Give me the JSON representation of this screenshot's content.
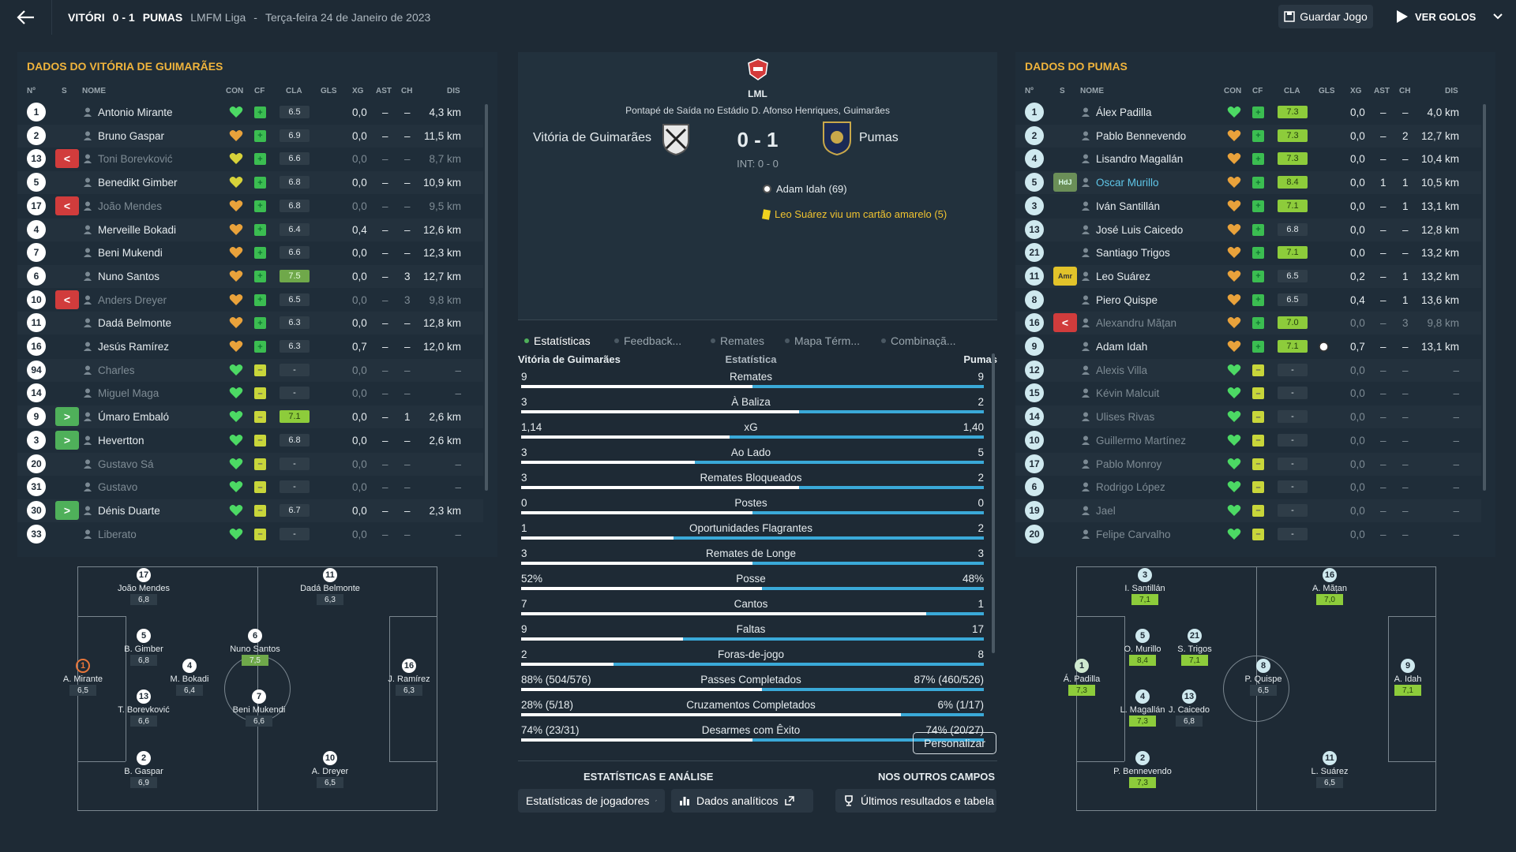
{
  "header": {
    "home": "VITÓRI",
    "score": "0 - 1",
    "away": "PUMAS",
    "league": "LMFM Liga",
    "sep": "-",
    "date": "Terça-feira 24 de Janeiro de 2023",
    "save_label": "Guardar Jogo",
    "goals_label": "VER GOLOS"
  },
  "left_panel": {
    "title": "DADOS DO VITÓRIA DE GUIMARÃES",
    "columns": {
      "num": "Nº",
      "s": "S",
      "name": "NOME",
      "con": "CON",
      "cf": "CF",
      "cla": "CLA",
      "gls": "GLS",
      "xg": "XG",
      "ast": "AST",
      "ch": "CH",
      "dis": "DIS"
    },
    "players": [
      {
        "n": "1",
        "sub": "",
        "name": "Antonio Mirante",
        "con": "green",
        "cf": "g",
        "cla": "6.5",
        "rc": "",
        "xg": "0,0",
        "ast": "–",
        "ch": "–",
        "dis": "4,3 km",
        "dim": false
      },
      {
        "n": "2",
        "sub": "",
        "name": "Bruno Gaspar",
        "con": "orange",
        "cf": "g",
        "cla": "6.9",
        "rc": "",
        "xg": "0,0",
        "ast": "–",
        "ch": "–",
        "dis": "11,5 km",
        "dim": false
      },
      {
        "n": "13",
        "sub": "out",
        "name": "Toni Borevković",
        "con": "yellow",
        "cf": "g",
        "cla": "6.6",
        "rc": "",
        "xg": "0,0",
        "ast": "–",
        "ch": "–",
        "dis": "8,7 km",
        "dim": true
      },
      {
        "n": "5",
        "sub": "",
        "name": "Benedikt Gimber",
        "con": "yellow",
        "cf": "g",
        "cla": "6.8",
        "rc": "",
        "xg": "0,0",
        "ast": "–",
        "ch": "–",
        "dis": "10,9 km",
        "dim": false
      },
      {
        "n": "17",
        "sub": "out",
        "name": "João Mendes",
        "con": "orange",
        "cf": "g",
        "cla": "6.8",
        "rc": "",
        "xg": "0,0",
        "ast": "–",
        "ch": "–",
        "dis": "9,5 km",
        "dim": true
      },
      {
        "n": "4",
        "sub": "",
        "name": "Merveille Bokadi",
        "con": "orange",
        "cf": "g",
        "cla": "6.4",
        "rc": "",
        "xg": "0,4",
        "ast": "–",
        "ch": "–",
        "dis": "12,6 km",
        "dim": false
      },
      {
        "n": "7",
        "sub": "",
        "name": "Beni Mukendi",
        "con": "orange",
        "cf": "g",
        "cla": "6.6",
        "rc": "",
        "xg": "0,0",
        "ast": "–",
        "ch": "–",
        "dis": "12,3 km",
        "dim": false
      },
      {
        "n": "6",
        "sub": "",
        "name": "Nuno Santos",
        "con": "orange",
        "cf": "g",
        "cla": "7.5",
        "rc": "g",
        "xg": "0,0",
        "ast": "–",
        "ch": "3",
        "dis": "12,7 km",
        "dim": false
      },
      {
        "n": "10",
        "sub": "out",
        "name": "Anders Dreyer",
        "con": "orange",
        "cf": "g",
        "cla": "6.5",
        "rc": "",
        "xg": "0,0",
        "ast": "–",
        "ch": "3",
        "dis": "9,8 km",
        "dim": true
      },
      {
        "n": "11",
        "sub": "",
        "name": "Dadá Belmonte",
        "con": "orange",
        "cf": "g",
        "cla": "6.3",
        "rc": "",
        "xg": "0,0",
        "ast": "–",
        "ch": "–",
        "dis": "12,8 km",
        "dim": false
      },
      {
        "n": "16",
        "sub": "",
        "name": "Jesús Ramírez",
        "con": "orange",
        "cf": "g",
        "cla": "6.3",
        "rc": "",
        "xg": "0,7",
        "ast": "–",
        "ch": "–",
        "dis": "12,0 km",
        "dim": false
      },
      {
        "n": "94",
        "sub": "",
        "name": "Charles",
        "con": "green",
        "cf": "y",
        "cla": "-",
        "rc": "",
        "xg": "0,0",
        "ast": "–",
        "ch": "–",
        "dis": "–",
        "dim": true
      },
      {
        "n": "14",
        "sub": "",
        "name": "Miguel Maga",
        "con": "green",
        "cf": "y",
        "cla": "-",
        "rc": "",
        "xg": "0,0",
        "ast": "–",
        "ch": "–",
        "dis": "–",
        "dim": true
      },
      {
        "n": "9",
        "sub": "in",
        "name": "Úmaro Embaló",
        "con": "green",
        "cf": "y",
        "cla": "7.1",
        "rc": "b",
        "xg": "0,0",
        "ast": "–",
        "ch": "1",
        "dis": "2,6 km",
        "dim": false
      },
      {
        "n": "3",
        "sub": "in",
        "name": "Hevertton",
        "con": "green",
        "cf": "y",
        "cla": "6.8",
        "rc": "",
        "xg": "0,0",
        "ast": "–",
        "ch": "–",
        "dis": "2,6 km",
        "dim": false
      },
      {
        "n": "20",
        "sub": "",
        "name": "Gustavo Sá",
        "con": "green",
        "cf": "y",
        "cla": "-",
        "rc": "",
        "xg": "0,0",
        "ast": "–",
        "ch": "–",
        "dis": "–",
        "dim": true
      },
      {
        "n": "31",
        "sub": "",
        "name": "Gustavo",
        "con": "green",
        "cf": "y",
        "cla": "-",
        "rc": "",
        "xg": "0,0",
        "ast": "–",
        "ch": "–",
        "dis": "–",
        "dim": true
      },
      {
        "n": "30",
        "sub": "in",
        "name": "Dénis Duarte",
        "con": "green",
        "cf": "y",
        "cla": "6.7",
        "rc": "",
        "xg": "0,0",
        "ast": "–",
        "ch": "–",
        "dis": "2,3 km",
        "dim": false
      },
      {
        "n": "33",
        "sub": "",
        "name": "Liberato",
        "con": "green",
        "cf": "y",
        "cla": "-",
        "rc": "",
        "xg": "0,0",
        "ast": "–",
        "ch": "–",
        "dis": "–",
        "dim": true
      }
    ]
  },
  "right_panel": {
    "title": "DADOS DO PUMAS",
    "players": [
      {
        "n": "1",
        "sub": "",
        "name": "Álex Padilla",
        "con": "green",
        "cf": "g",
        "cla": "7.3",
        "rc": "b",
        "xg": "0,0",
        "ast": "–",
        "ch": "–",
        "dis": "4,0 km",
        "dim": false
      },
      {
        "n": "2",
        "sub": "",
        "name": "Pablo Bennevendo",
        "con": "orange",
        "cf": "g",
        "cla": "7.3",
        "rc": "b",
        "xg": "0,0",
        "ast": "–",
        "ch": "2",
        "dis": "12,7 km",
        "dim": false
      },
      {
        "n": "4",
        "sub": "",
        "name": "Lisandro Magallán",
        "con": "orange",
        "cf": "g",
        "cla": "7.3",
        "rc": "b",
        "xg": "0,0",
        "ast": "–",
        "ch": "–",
        "dis": "10,4 km",
        "dim": false
      },
      {
        "n": "5",
        "sub": "hdj",
        "name": "Oscar Murillo",
        "con": "orange",
        "cf": "g",
        "cla": "8.4",
        "rc": "b",
        "xg": "0,0",
        "ast": "1",
        "ch": "1",
        "dis": "10,5 km",
        "dim": false,
        "hl": true
      },
      {
        "n": "3",
        "sub": "",
        "name": "Iván Santillán",
        "con": "orange",
        "cf": "g",
        "cla": "7.1",
        "rc": "b",
        "xg": "0,0",
        "ast": "–",
        "ch": "1",
        "dis": "13,1 km",
        "dim": false
      },
      {
        "n": "13",
        "sub": "",
        "name": "José Luis Caicedo",
        "con": "orange",
        "cf": "g",
        "cla": "6.8",
        "rc": "",
        "xg": "0,0",
        "ast": "–",
        "ch": "–",
        "dis": "12,8 km",
        "dim": false
      },
      {
        "n": "21",
        "sub": "",
        "name": "Santiago Trigos",
        "con": "orange",
        "cf": "g",
        "cla": "7.1",
        "rc": "b",
        "xg": "0,0",
        "ast": "–",
        "ch": "–",
        "dis": "13,2 km",
        "dim": false
      },
      {
        "n": "11",
        "sub": "amr",
        "name": "Leo Suárez",
        "con": "orange",
        "cf": "g",
        "cla": "6.5",
        "rc": "",
        "xg": "0,2",
        "ast": "–",
        "ch": "1",
        "dis": "13,2 km",
        "dim": false
      },
      {
        "n": "8",
        "sub": "",
        "name": "Piero Quispe",
        "con": "orange",
        "cf": "g",
        "cla": "6.5",
        "rc": "",
        "xg": "0,4",
        "ast": "–",
        "ch": "1",
        "dis": "13,6 km",
        "dim": false
      },
      {
        "n": "16",
        "sub": "out",
        "name": "Alexandru Mățan",
        "con": "orange",
        "cf": "g",
        "cla": "7.0",
        "rc": "b",
        "xg": "0,0",
        "ast": "–",
        "ch": "3",
        "dis": "9,8 km",
        "dim": true
      },
      {
        "n": "9",
        "sub": "",
        "name": "Adam Idah",
        "con": "orange",
        "cf": "g",
        "cla": "7.1",
        "rc": "b",
        "xg": "0,7",
        "ast": "–",
        "ch": "–",
        "dis": "13,1 km",
        "dim": false,
        "ball": true
      },
      {
        "n": "12",
        "sub": "",
        "name": "Alexis Villa",
        "con": "green",
        "cf": "y",
        "cla": "-",
        "rc": "",
        "xg": "0,0",
        "ast": "–",
        "ch": "–",
        "dis": "–",
        "dim": true
      },
      {
        "n": "15",
        "sub": "",
        "name": "Kévin Malcuit",
        "con": "green",
        "cf": "y",
        "cla": "-",
        "rc": "",
        "xg": "0,0",
        "ast": "–",
        "ch": "–",
        "dis": "–",
        "dim": true
      },
      {
        "n": "14",
        "sub": "",
        "name": "Ulises Rivas",
        "con": "green",
        "cf": "y",
        "cla": "-",
        "rc": "",
        "xg": "0,0",
        "ast": "–",
        "ch": "–",
        "dis": "–",
        "dim": true
      },
      {
        "n": "10",
        "sub": "",
        "name": "Guillermo Martínez",
        "con": "green",
        "cf": "y",
        "cla": "-",
        "rc": "",
        "xg": "0,0",
        "ast": "–",
        "ch": "–",
        "dis": "–",
        "dim": true
      },
      {
        "n": "17",
        "sub": "",
        "name": "Pablo Monroy",
        "con": "green",
        "cf": "y",
        "cla": "-",
        "rc": "",
        "xg": "0,0",
        "ast": "–",
        "ch": "–",
        "dis": "–",
        "dim": true
      },
      {
        "n": "6",
        "sub": "",
        "name": "Rodrigo López",
        "con": "green",
        "cf": "y",
        "cla": "-",
        "rc": "",
        "xg": "0,0",
        "ast": "–",
        "ch": "–",
        "dis": "–",
        "dim": true
      },
      {
        "n": "19",
        "sub": "",
        "name": "Jael",
        "con": "green",
        "cf": "y",
        "cla": "-",
        "rc": "",
        "xg": "0,0",
        "ast": "–",
        "ch": "–",
        "dis": "–",
        "dim": true
      },
      {
        "n": "20",
        "sub": "",
        "name": "Felipe Carvalho",
        "con": "green",
        "cf": "y",
        "cla": "-",
        "rc": "",
        "xg": "0,0",
        "ast": "–",
        "ch": "–",
        "dis": "–",
        "dim": true
      }
    ]
  },
  "left_pitch": [
    {
      "n": "17",
      "name": "João Mendes",
      "r": "6,8",
      "rc": ""
    },
    {
      "n": "11",
      "name": "Dadá Belmonte",
      "r": "6,3",
      "rc": ""
    },
    {
      "n": "5",
      "name": "B. Gimber",
      "r": "6,8",
      "rc": ""
    },
    {
      "n": "6",
      "name": "Nuno Santos",
      "r": "7,5",
      "rc": "g"
    },
    {
      "n": "1",
      "name": "A. Mirante",
      "r": "6,5",
      "rc": "",
      "gk": true
    },
    {
      "n": "4",
      "name": "M. Bokadi",
      "r": "6,4",
      "rc": ""
    },
    {
      "n": "16",
      "name": "J. Ramírez",
      "r": "6,3",
      "rc": ""
    },
    {
      "n": "13",
      "name": "T. Borevković",
      "r": "6,6",
      "rc": ""
    },
    {
      "n": "7",
      "name": "Beni Mukendi",
      "r": "6,6",
      "rc": ""
    },
    {
      "n": "2",
      "name": "B. Gaspar",
      "r": "6,9",
      "rc": ""
    },
    {
      "n": "10",
      "name": "A. Dreyer",
      "r": "6,5",
      "rc": ""
    }
  ],
  "right_pitch": [
    {
      "n": "3",
      "name": "I. Santillán",
      "r": "7,1",
      "rc": "b"
    },
    {
      "n": "16",
      "name": "A. Mățan",
      "r": "7,0",
      "rc": "b"
    },
    {
      "n": "5",
      "name": "O. Murillo",
      "r": "8,4",
      "rc": "b"
    },
    {
      "n": "21",
      "name": "S. Trigos",
      "r": "7,1",
      "rc": "b"
    },
    {
      "n": "1",
      "name": "Á. Padilla",
      "r": "7,3",
      "rc": "b",
      "gk": true
    },
    {
      "n": "8",
      "name": "P. Quispe",
      "r": "6,5",
      "rc": ""
    },
    {
      "n": "9",
      "name": "A. Idah",
      "r": "7,1",
      "rc": "b"
    },
    {
      "n": "4",
      "name": "L. Magallán",
      "r": "7,3",
      "rc": "b"
    },
    {
      "n": "13",
      "name": "J. Caicedo",
      "r": "6,8",
      "rc": ""
    },
    {
      "n": "2",
      "name": "P. Bennevendo",
      "r": "7,3",
      "rc": "b"
    },
    {
      "n": "11",
      "name": "L. Suárez",
      "r": "6,5",
      "rc": ""
    }
  ],
  "match": {
    "competition": "LML",
    "venue": "Pontapé de Saída no Estádio D. Afonso Henriques, Guimarães",
    "home": "Vitória de Guimarães",
    "away": "Pumas",
    "score": "0 - 1",
    "ht": "INT: 0 - 0",
    "event_goal": "Adam Idah (69)",
    "event_card": "Leo Suárez viu um cartão amarelo (5)"
  },
  "tabs": [
    "Estatísticas",
    "Feedback...",
    "Remates",
    "Mapa Térm...",
    "Combinaçã..."
  ],
  "stats": {
    "home_label": "Vitória de Guimarães",
    "mid_label": "Estatística",
    "away_label": "Pumas",
    "rows": [
      {
        "l": "9",
        "name": "Remates",
        "r": "9",
        "share": 0.5
      },
      {
        "l": "3",
        "name": "À Baliza",
        "r": "2",
        "share": 0.6
      },
      {
        "l": "1,14",
        "name": "xG",
        "r": "1,40",
        "share": 0.45
      },
      {
        "l": "3",
        "name": "Ao Lado",
        "r": "5",
        "share": 0.375
      },
      {
        "l": "3",
        "name": "Remates Bloqueados",
        "r": "2",
        "share": 0.6
      },
      {
        "l": "0",
        "name": "Postes",
        "r": "0",
        "share": 0.5
      },
      {
        "l": "1",
        "name": "Oportunidades Flagrantes",
        "r": "2",
        "share": 0.33
      },
      {
        "l": "3",
        "name": "Remates de Longe",
        "r": "3",
        "share": 0.5
      },
      {
        "l": "52%",
        "name": "Posse",
        "r": "48%",
        "share": 0.52
      },
      {
        "l": "7",
        "name": "Cantos",
        "r": "1",
        "share": 0.875
      },
      {
        "l": "9",
        "name": "Faltas",
        "r": "17",
        "share": 0.35
      },
      {
        "l": "2",
        "name": "Foras-de-jogo",
        "r": "8",
        "share": 0.2
      },
      {
        "l": "88% (504/576)",
        "name": "Passes Completados",
        "r": "87% (460/526)",
        "share": 0.52
      },
      {
        "l": "28% (5/18)",
        "name": "Cruzamentos Completados",
        "r": "6% (1/17)",
        "share": 0.82
      },
      {
        "l": "74% (23/31)",
        "name": "Desarmes com Êxito",
        "r": "74% (20/27)",
        "share": 0.5
      }
    ]
  },
  "customize_label": "Personalizar",
  "bottom": {
    "stats_title": "ESTATÍSTICAS E ANÁLISE",
    "others_title": "NOS OUTROS CAMPOS",
    "btn1": "Estatísticas de jogadores",
    "btn2": "Dados analíticos",
    "btn3": "Últimos resultados e tabela"
  },
  "colors": {
    "accent": "#f0b43c",
    "bar_home": "#ffffff",
    "bar_away": "#3aa9d8",
    "sub_out": "#d13c3c",
    "sub_in": "#4fb05a"
  }
}
